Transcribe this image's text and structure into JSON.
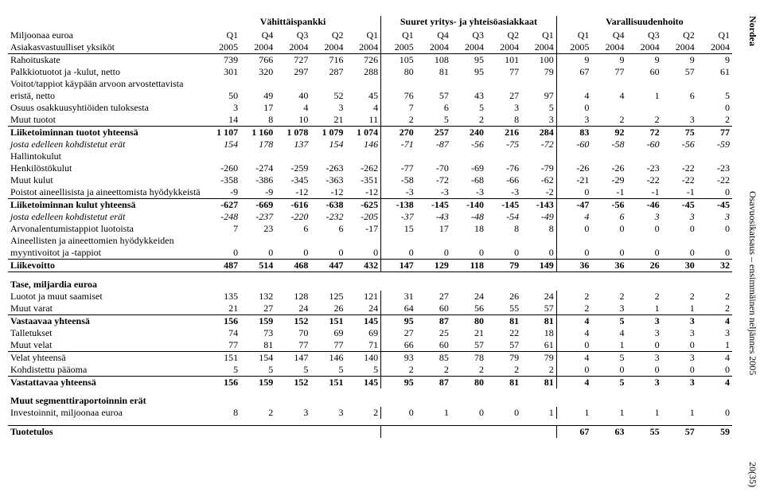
{
  "side": {
    "brand": "Nordea",
    "title": "Osavuosikatsaus – ensimmäinen neljännes 2005",
    "page": "20(35)"
  },
  "segments": [
    "Vähittäispankki",
    "Suuret yritys- ja yhteisöasiakkaat",
    "Varallisuudenhoito"
  ],
  "left_headers": {
    "line1": "Miljoonaa euroa",
    "line2": "Asiakasvastuulliset yksiköt"
  },
  "periods_top": [
    "Q1",
    "Q4",
    "Q3",
    "Q2",
    "Q1",
    "Q1",
    "Q4",
    "Q3",
    "Q2",
    "Q1",
    "Q1",
    "Q4",
    "Q3",
    "Q2",
    "Q1"
  ],
  "periods_bot": [
    "2005",
    "2004",
    "2004",
    "2004",
    "2004",
    "2005",
    "2004",
    "2004",
    "2004",
    "2004",
    "2005",
    "2004",
    "2004",
    "2004",
    "2004"
  ],
  "rows": [
    {
      "label": "Rahoituskate",
      "v": [
        739,
        766,
        727,
        716,
        726,
        105,
        108,
        95,
        101,
        100,
        9,
        9,
        9,
        9,
        9
      ]
    },
    {
      "label": "Palkkiotuotot ja -kulut, netto",
      "v": [
        301,
        320,
        297,
        287,
        288,
        80,
        81,
        95,
        77,
        79,
        67,
        77,
        60,
        57,
        61
      ]
    },
    {
      "label": "Voitot/tappiot käypään arvoon arvostettavista eristä, netto",
      "v": [
        50,
        49,
        40,
        52,
        45,
        76,
        57,
        43,
        27,
        97,
        4,
        4,
        1,
        6,
        5
      ]
    },
    {
      "label": "Osuus osakkuusyhtiöiden tuloksesta",
      "v": [
        3,
        17,
        4,
        3,
        4,
        7,
        6,
        5,
        3,
        5,
        0,
        "",
        "",
        "",
        0
      ]
    },
    {
      "label": "Muut tuotot",
      "v": [
        14,
        8,
        10,
        21,
        11,
        2,
        5,
        2,
        8,
        3,
        3,
        2,
        2,
        3,
        2
      ],
      "bb": true
    },
    {
      "label": "Liiketoiminnan tuotot yhteensä",
      "v": [
        "1 107",
        "1 160",
        "1 078",
        "1 079",
        "1 074",
        270,
        257,
        240,
        216,
        284,
        83,
        92,
        72,
        75,
        77
      ],
      "bold": true
    },
    {
      "label": "josta edelleen kohdistetut erät",
      "v": [
        154,
        178,
        137,
        154,
        146,
        -71,
        -87,
        -56,
        -75,
        -72,
        -60,
        -58,
        -60,
        -56,
        -59
      ],
      "italic": true
    },
    {
      "label": "Hallintokulut",
      "v": [
        "",
        "",
        "",
        "",
        "",
        "",
        "",
        "",
        "",
        "",
        "",
        "",
        "",
        "",
        ""
      ]
    },
    {
      "label": "  Henkilöstökulut",
      "v": [
        -260,
        -274,
        -259,
        -263,
        -262,
        -77,
        -70,
        -69,
        -76,
        -79,
        -26,
        -26,
        -23,
        -22,
        -23
      ]
    },
    {
      "label": "  Muut kulut",
      "v": [
        -358,
        -386,
        -345,
        -363,
        -351,
        -58,
        -72,
        -68,
        -66,
        -62,
        -21,
        -29,
        -22,
        -22,
        -22
      ]
    },
    {
      "label": "Poistot aineellisista ja aineettomista hyödykkeistä",
      "v": [
        -9,
        -9,
        -12,
        -12,
        -12,
        -3,
        -3,
        -3,
        -3,
        -2,
        0,
        -1,
        -1,
        -1,
        0
      ],
      "bb": true
    },
    {
      "label": "Liiketoiminnan kulut yhteensä",
      "v": [
        -627,
        -669,
        -616,
        -638,
        -625,
        -138,
        -145,
        -140,
        -145,
        -143,
        -47,
        -56,
        -46,
        -45,
        -45
      ],
      "bold": true
    },
    {
      "label": "josta edelleen kohdistetut erät",
      "v": [
        -248,
        -237,
        -220,
        -232,
        -205,
        -37,
        -43,
        -48,
        -54,
        -49,
        4,
        6,
        3,
        3,
        3
      ],
      "italic": true
    },
    {
      "label": "Arvonalentumistappiot luotoista",
      "v": [
        7,
        23,
        6,
        6,
        -17,
        15,
        17,
        18,
        8,
        8,
        0,
        0,
        0,
        0,
        0
      ]
    },
    {
      "label": "Aineellisten ja aineettomien hyödykkeiden myyntivoitot ja -tappiot",
      "v": [
        0,
        0,
        0,
        0,
        0,
        0,
        0,
        0,
        0,
        0,
        0,
        0,
        0,
        0,
        0
      ],
      "bb": true
    },
    {
      "label": "Liikevoitto",
      "v": [
        487,
        514,
        468,
        447,
        432,
        147,
        129,
        118,
        79,
        149,
        36,
        36,
        26,
        30,
        32
      ],
      "bold": true,
      "bb": true
    }
  ],
  "balance_header": "Tase, miljardia euroa",
  "balance_rows": [
    {
      "label": "Luotot ja muut saamiset",
      "v": [
        135,
        132,
        128,
        125,
        121,
        31,
        27,
        24,
        26,
        24,
        2,
        2,
        2,
        2,
        2
      ]
    },
    {
      "label": "Muut varat",
      "v": [
        21,
        27,
        24,
        26,
        24,
        64,
        60,
        56,
        55,
        57,
        2,
        3,
        1,
        1,
        2
      ],
      "bb": true
    },
    {
      "label": "Vastaavaa yhteensä",
      "v": [
        156,
        159,
        152,
        151,
        145,
        95,
        87,
        80,
        81,
        81,
        4,
        5,
        3,
        3,
        4
      ],
      "bold": true
    },
    {
      "label": "Talletukset",
      "v": [
        74,
        73,
        70,
        69,
        69,
        27,
        25,
        21,
        22,
        18,
        4,
        4,
        3,
        3,
        3
      ]
    },
    {
      "label": "Muut velat",
      "v": [
        77,
        81,
        77,
        77,
        71,
        66,
        60,
        57,
        57,
        61,
        0,
        1,
        0,
        0,
        1
      ],
      "bb": true
    },
    {
      "label": "Velat yhteensä",
      "v": [
        151,
        154,
        147,
        146,
        140,
        93,
        85,
        78,
        79,
        79,
        4,
        5,
        3,
        3,
        4
      ]
    },
    {
      "label": "Kohdistettu pääoma",
      "v": [
        5,
        5,
        5,
        5,
        5,
        2,
        2,
        2,
        2,
        2,
        0,
        0,
        0,
        0,
        0
      ],
      "bb": true
    },
    {
      "label": "Vastattavaa yhteensä",
      "v": [
        156,
        159,
        152,
        151,
        145,
        95,
        87,
        80,
        81,
        81,
        4,
        5,
        3,
        3,
        4
      ],
      "bold": true
    }
  ],
  "other_header": "Muut segmenttiraportoinnin erät",
  "other_rows": [
    {
      "label": "Investoinnit, miljoonaa euroa",
      "v": [
        8,
        2,
        3,
        3,
        2,
        0,
        1,
        0,
        0,
        1,
        1,
        1,
        1,
        1,
        0
      ]
    }
  ],
  "footer_row": {
    "label": "Tuotetulos",
    "v": [
      "",
      "",
      "",
      "",
      "",
      "",
      "",
      "",
      "",
      "",
      67,
      63,
      55,
      57,
      59
    ],
    "bold": true,
    "bt": true
  }
}
